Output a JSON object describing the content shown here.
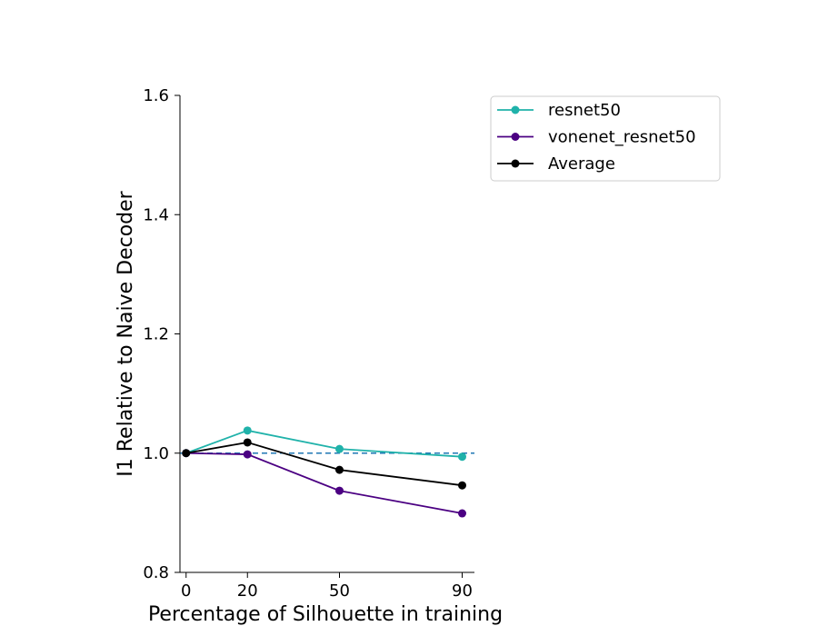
{
  "chart_data": {
    "type": "line",
    "title": "",
    "xlabel": "Percentage of Silhouette in training",
    "ylabel": "I1 Relative to Naive Decoder",
    "x": [
      0,
      20,
      50,
      90
    ],
    "xticks": [
      "0",
      "20",
      "50",
      "90"
    ],
    "xlim": [
      -2,
      94
    ],
    "ylim": [
      0.8,
      1.6
    ],
    "yticks": [
      "0.8",
      "1.0",
      "1.2",
      "1.4",
      "1.6"
    ],
    "grid": false,
    "legend_position": "upper right, outside plot area",
    "reference_line": {
      "y": 1.0,
      "style": "dashed",
      "color": "#1f77b4"
    },
    "series": [
      {
        "name": "resnet50",
        "color": "#20b2aa",
        "values": [
          1.0,
          1.038,
          1.007,
          0.994
        ]
      },
      {
        "name": "vonenet_resnet50",
        "color": "#4b0082",
        "values": [
          1.0,
          0.998,
          0.937,
          0.899
        ]
      },
      {
        "name": "Average",
        "color": "#000000",
        "values": [
          1.0,
          1.018,
          0.972,
          0.946
        ]
      }
    ]
  }
}
